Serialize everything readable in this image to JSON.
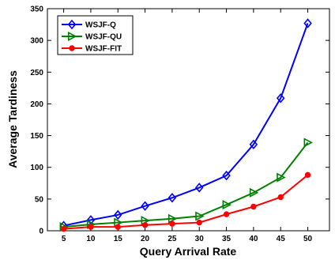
{
  "chart_data": {
    "type": "line",
    "title": "",
    "xlabel": "Query Arrival Rate",
    "ylabel": "Average Tardiness",
    "x": [
      5,
      10,
      15,
      20,
      25,
      30,
      35,
      40,
      45,
      50
    ],
    "xlim": [
      2,
      54
    ],
    "ylim": [
      0,
      350
    ],
    "yticks": [
      0,
      50,
      100,
      150,
      200,
      250,
      300,
      350
    ],
    "grid": false,
    "legend_position": "top-left",
    "series": [
      {
        "name": "WSJF-Q",
        "color": "#0000ff",
        "marker": "diamond",
        "values": [
          8,
          17,
          25,
          39,
          52,
          68,
          87,
          136,
          209,
          327
        ]
      },
      {
        "name": "WSJF-QU",
        "color": "#008000",
        "marker": "triangle-right",
        "values": [
          6,
          10,
          13,
          16,
          19,
          23,
          41,
          60,
          84,
          139
        ]
      },
      {
        "name": "WSJF-FIT",
        "color": "#ff0000",
        "marker": "circle",
        "values": [
          3,
          6,
          6,
          9,
          11,
          13,
          26,
          38,
          53,
          88
        ]
      }
    ]
  }
}
